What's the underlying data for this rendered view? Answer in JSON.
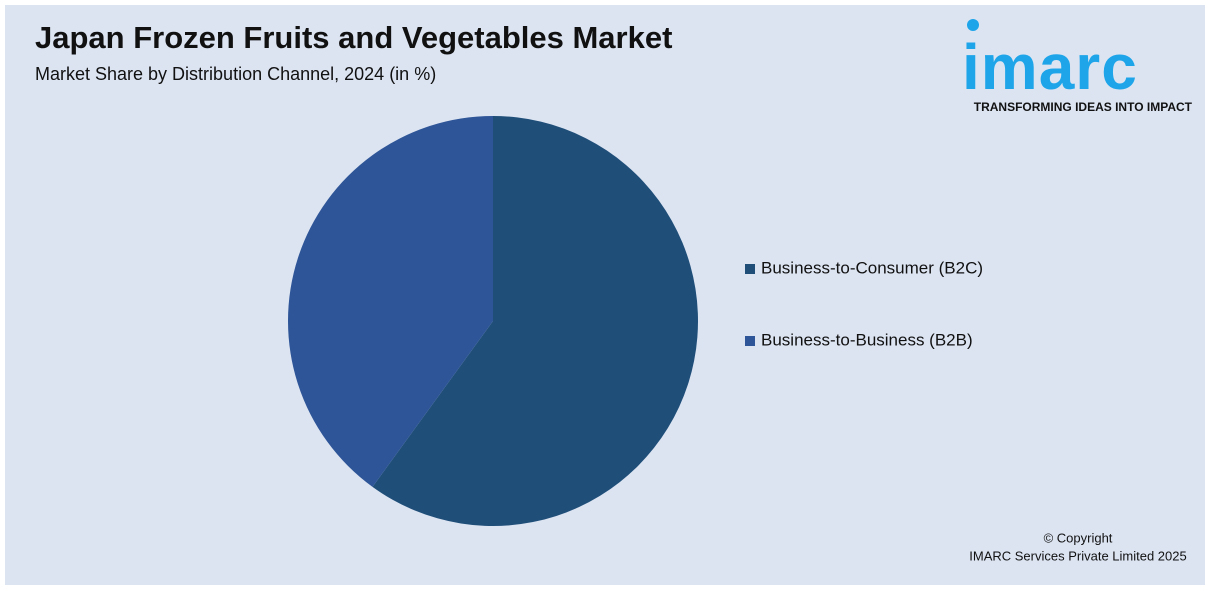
{
  "chart_data": {
    "type": "pie",
    "title": "Japan Frozen Fruits and Vegetables Market",
    "subtitle": "Market Share by Distribution Channel, 2024 (in %)",
    "categories": [
      "Business-to-Consumer (B2C)",
      "Business-to-Business (B2B)"
    ],
    "values": [
      60,
      40
    ],
    "colors": [
      "#1f4e79",
      "#2e5597"
    ]
  },
  "logo": {
    "name": "imarc",
    "tagline": "TRANSFORMING IDEAS INTO IMPACT"
  },
  "copyright": [
    "© Copyright",
    "IMARC Services Private Limited 2025"
  ]
}
